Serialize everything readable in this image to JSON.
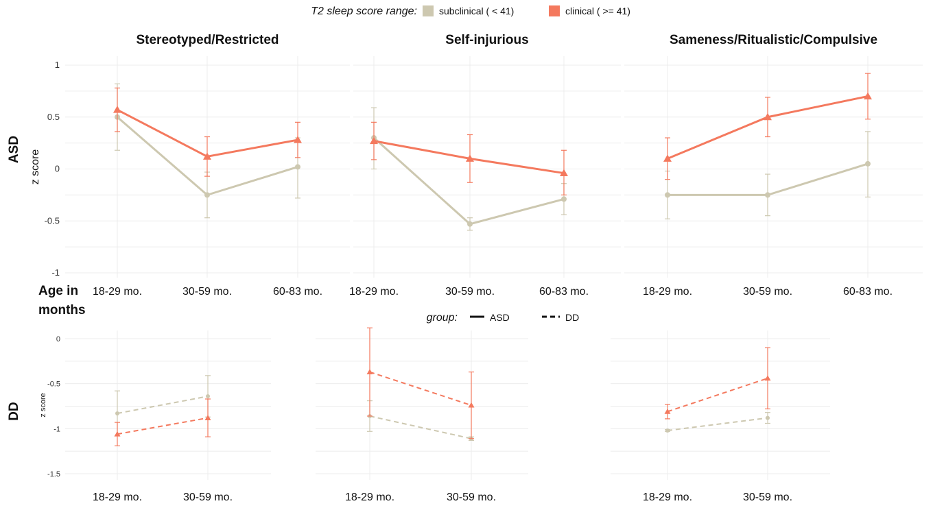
{
  "legend": {
    "title": "T2 sleep score range:",
    "items": [
      {
        "label": "subclinical ( < 41)",
        "color": "#cdc8b0"
      },
      {
        "label": "clinical ( >= 41)",
        "color": "#f4795e"
      }
    ]
  },
  "group_legend": {
    "title": "group:",
    "items": [
      {
        "label": "ASD",
        "dash": "solid"
      },
      {
        "label": "DD",
        "dash": "dashed"
      }
    ]
  },
  "row_labels": [
    "ASD",
    "DD"
  ],
  "age_label": "Age in months",
  "colors": {
    "subclinical": "#cdc8b0",
    "clinical": "#f4795e"
  },
  "chart_data": [
    {
      "type": "line",
      "row": "ASD",
      "title": "Stereotyped/Restricted",
      "ylabel": "z score",
      "ylim": [
        -1,
        1
      ],
      "yticks": [
        -1,
        -0.5,
        0,
        0.5,
        1
      ],
      "categories": [
        "18-29 mo.",
        "30-59 mo.",
        "60-83 mo."
      ],
      "series": [
        {
          "name": "subclinical ( < 41)",
          "values": [
            0.5,
            -0.25,
            0.02
          ],
          "lower": [
            0.18,
            -0.47,
            -0.28
          ],
          "upper": [
            0.82,
            -0.03,
            0.3
          ]
        },
        {
          "name": "clinical ( >= 41)",
          "values": [
            0.57,
            0.12,
            0.28
          ],
          "lower": [
            0.36,
            -0.07,
            0.11
          ],
          "upper": [
            0.78,
            0.31,
            0.45
          ]
        }
      ]
    },
    {
      "type": "line",
      "row": "ASD",
      "title": "Self-injurious",
      "ylabel": "",
      "ylim": [
        -1,
        1
      ],
      "yticks": [],
      "categories": [
        "18-29 mo.",
        "30-59 mo.",
        "60-83 mo."
      ],
      "series": [
        {
          "name": "subclinical ( < 41)",
          "values": [
            0.3,
            -0.53,
            -0.29
          ],
          "lower": [
            0.0,
            -0.59,
            -0.44
          ],
          "upper": [
            0.59,
            -0.47,
            -0.14
          ]
        },
        {
          "name": "clinical ( >= 41)",
          "values": [
            0.27,
            0.1,
            -0.04
          ],
          "lower": [
            0.09,
            -0.13,
            -0.25
          ],
          "upper": [
            0.45,
            0.33,
            0.18
          ]
        }
      ]
    },
    {
      "type": "line",
      "row": "ASD",
      "title": "Sameness/Ritualistic/Compulsive",
      "ylabel": "",
      "ylim": [
        -1,
        1
      ],
      "yticks": [],
      "categories": [
        "18-29 mo.",
        "30-59 mo.",
        "60-83 mo."
      ],
      "series": [
        {
          "name": "subclinical ( < 41)",
          "values": [
            -0.25,
            -0.25,
            0.05
          ],
          "lower": [
            -0.48,
            -0.45,
            -0.27
          ],
          "upper": [
            -0.02,
            -0.05,
            0.36
          ]
        },
        {
          "name": "clinical ( >= 41)",
          "values": [
            0.1,
            0.5,
            0.7
          ],
          "lower": [
            -0.1,
            0.31,
            0.48
          ],
          "upper": [
            0.3,
            0.69,
            0.92
          ]
        }
      ]
    },
    {
      "type": "line",
      "row": "DD",
      "title": "",
      "ylabel": "z score",
      "ylim": [
        -1.5,
        0
      ],
      "yticks": [
        -1.5,
        -1,
        -0.5,
        0
      ],
      "categories": [
        "18-29 mo.",
        "30-59 mo."
      ],
      "series": [
        {
          "name": "subclinical ( < 41)",
          "values": [
            -0.83,
            -0.64
          ],
          "lower": [
            -1.08,
            -0.87
          ],
          "upper": [
            -0.58,
            -0.41
          ]
        },
        {
          "name": "clinical ( >= 41)",
          "values": [
            -1.06,
            -0.88
          ],
          "lower": [
            -1.19,
            -1.09
          ],
          "upper": [
            -0.93,
            -0.67
          ]
        }
      ]
    },
    {
      "type": "line",
      "row": "DD",
      "title": "",
      "ylabel": "",
      "ylim": [
        -1.5,
        0
      ],
      "yticks": [],
      "categories": [
        "18-29 mo.",
        "30-59 mo."
      ],
      "series": [
        {
          "name": "subclinical ( < 41)",
          "values": [
            -0.86,
            -1.11
          ],
          "lower": [
            -1.03,
            -1.13
          ],
          "upper": [
            -0.69,
            -1.09
          ]
        },
        {
          "name": "clinical ( >= 41)",
          "values": [
            -0.37,
            -0.74
          ],
          "lower": [
            -0.86,
            -1.11
          ],
          "upper": [
            0.12,
            -0.37
          ]
        }
      ]
    },
    {
      "type": "line",
      "row": "DD",
      "title": "",
      "ylabel": "",
      "ylim": [
        -1.5,
        0
      ],
      "yticks": [],
      "categories": [
        "18-29 mo.",
        "30-59 mo."
      ],
      "series": [
        {
          "name": "subclinical ( < 41)",
          "values": [
            -1.02,
            -0.88
          ],
          "lower": [
            -1.03,
            -0.94
          ],
          "upper": [
            -1.01,
            -0.82
          ]
        },
        {
          "name": "clinical ( >= 41)",
          "values": [
            -0.81,
            -0.44
          ],
          "lower": [
            -0.89,
            -0.78
          ],
          "upper": [
            -0.73,
            -0.1
          ]
        }
      ]
    }
  ]
}
